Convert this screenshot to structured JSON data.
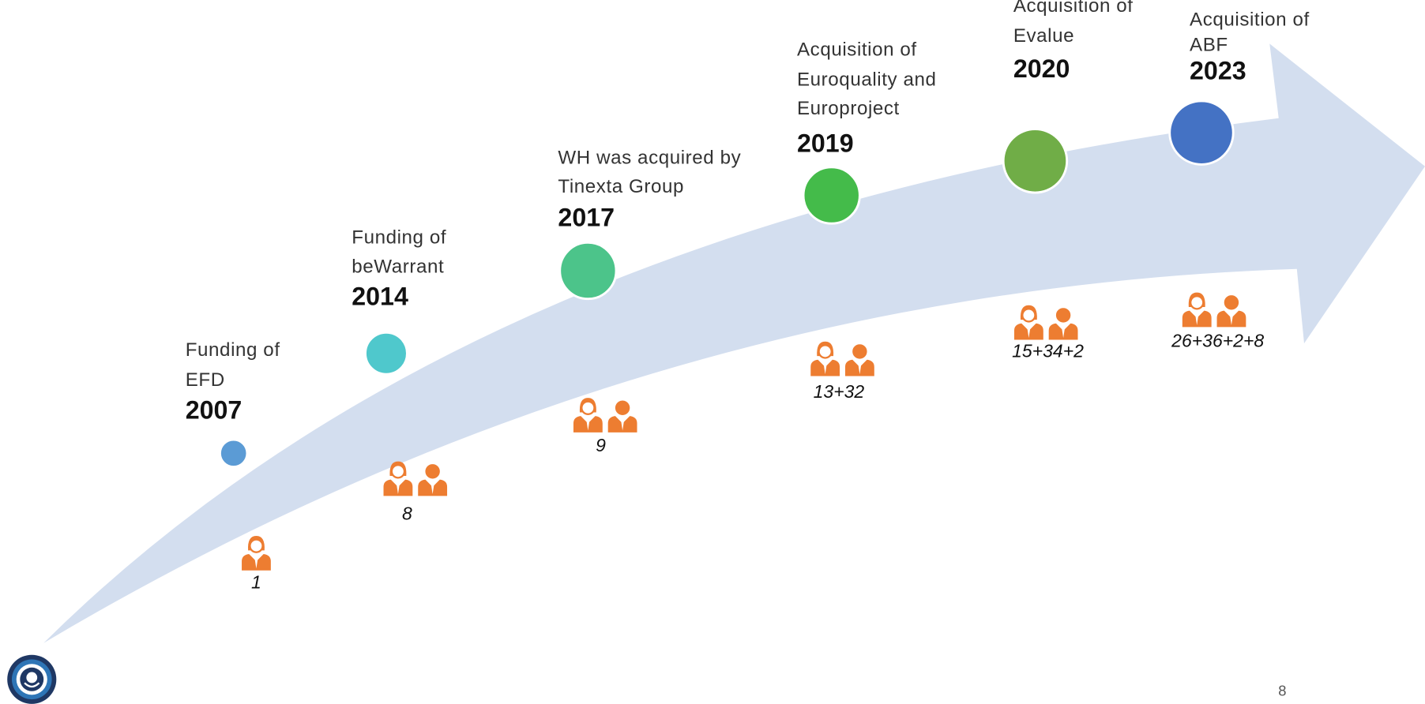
{
  "events": [
    {
      "description": [
        "Funding of",
        "EFD"
      ],
      "year": "2007",
      "staff": "1"
    },
    {
      "description": [
        "Funding of",
        "beWarrant"
      ],
      "year": "2014",
      "staff": "8"
    },
    {
      "description": [
        "WH was acquired by",
        "Tinexta Group"
      ],
      "year": "2017",
      "staff": "9"
    },
    {
      "description": [
        "Acquisition of",
        "Euroquality and",
        "Europroject"
      ],
      "year": "2019",
      "staff": "13+32"
    },
    {
      "description": [
        "Acquisition of",
        "Evalue"
      ],
      "year": "2020",
      "staff": "15+34+2"
    },
    {
      "description": [
        "Acquisition of",
        "ABF"
      ],
      "year": "2023",
      "staff": "26+36+2+8"
    }
  ],
  "page_number": "8"
}
